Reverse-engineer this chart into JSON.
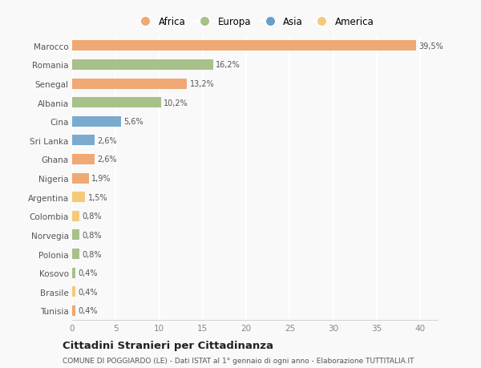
{
  "categories": [
    "Tunisia",
    "Brasile",
    "Kosovo",
    "Polonia",
    "Norvegia",
    "Colombia",
    "Argentina",
    "Nigeria",
    "Ghana",
    "Sri Lanka",
    "Cina",
    "Albania",
    "Senegal",
    "Romania",
    "Marocco"
  ],
  "values": [
    0.4,
    0.4,
    0.4,
    0.8,
    0.8,
    0.8,
    1.5,
    1.9,
    2.6,
    2.6,
    5.6,
    10.2,
    13.2,
    16.2,
    39.5
  ],
  "labels": [
    "0,4%",
    "0,4%",
    "0,4%",
    "0,8%",
    "0,8%",
    "0,8%",
    "1,5%",
    "1,9%",
    "2,6%",
    "2,6%",
    "5,6%",
    "10,2%",
    "13,2%",
    "16,2%",
    "39,5%"
  ],
  "colors": [
    "#f0a875",
    "#f5c97a",
    "#a8c08a",
    "#a8c08a",
    "#a8c08a",
    "#f5c97a",
    "#f5c97a",
    "#f0a875",
    "#f0a875",
    "#7aabcf",
    "#7aabcf",
    "#a8c08a",
    "#f0a875",
    "#a8c08a",
    "#f0a875"
  ],
  "legend_labels": [
    "Africa",
    "Europa",
    "Asia",
    "America"
  ],
  "legend_colors": [
    "#f0a875",
    "#a8c08a",
    "#6b9ec7",
    "#f5c97a"
  ],
  "title": "Cittadini Stranieri per Cittadinanza",
  "subtitle": "COMUNE DI POGGIARDO (LE) - Dati ISTAT al 1° gennaio di ogni anno - Elaborazione TUTTITALIA.IT",
  "xlim": [
    0,
    42
  ],
  "background_color": "#f9f9f9",
  "grid_color": "#ffffff",
  "bar_height": 0.55
}
